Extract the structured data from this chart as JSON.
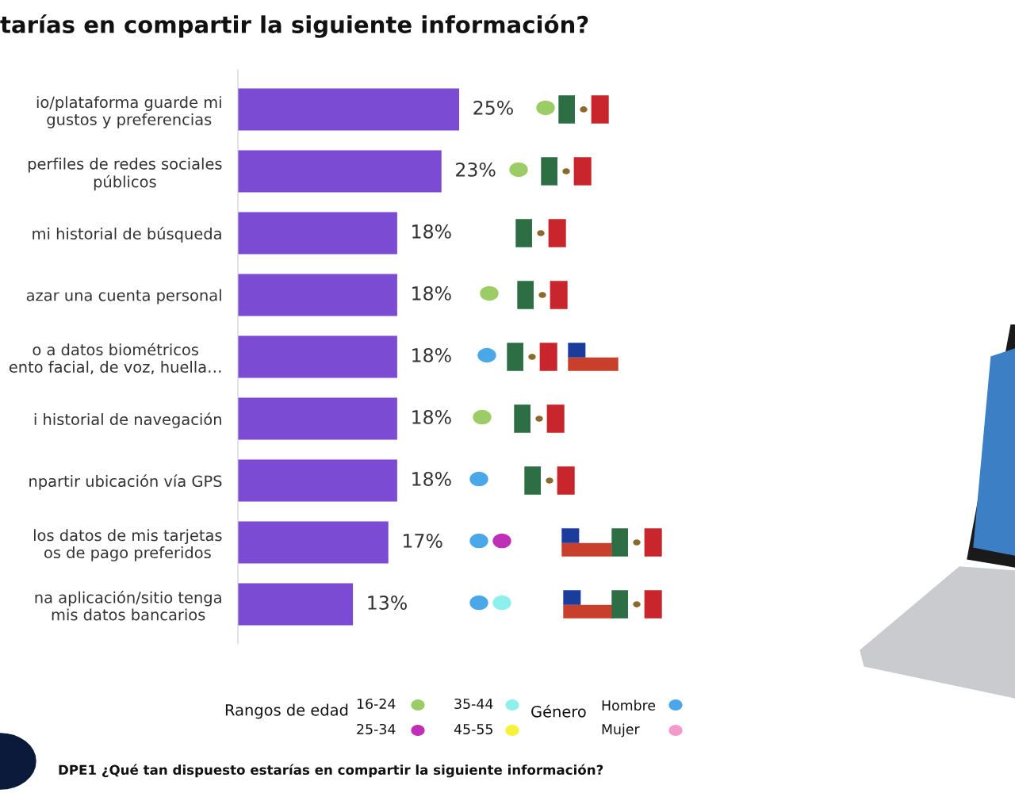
{
  "chart_data": {
    "type": "bar",
    "orientation": "horizontal",
    "title": "tarías en compartir la siguiente información?",
    "categories": [
      "io/plataforma guarde mi\ngustos y preferencias",
      "perfiles de redes sociales\npúblicos",
      "mi historial de búsqueda",
      "azar una cuenta personal",
      "o a datos biométricos\nento facial, de voz, huella…",
      "i historial de navegación",
      "npartir ubicación vía GPS",
      "los datos de mis tarjetas\nos de pago preferidos",
      "na aplicación/sitio tenga\nmis datos bancarios"
    ],
    "values": [
      25,
      23,
      18,
      18,
      18,
      18,
      18,
      17,
      13
    ],
    "value_labels": [
      "25%",
      "23%",
      "18%",
      "18%",
      "18%",
      "18%",
      "18%",
      "17%",
      "13%"
    ],
    "color": "#7b4bd3",
    "tick_labels": "y",
    "grid": false,
    "annotations": [
      "DPE1 ¿Qué tan dispuesto estarías en compartir la siguiente información?",
      "Rangos de edad",
      "16-24",
      "25-34",
      "35-44",
      "45-55",
      "Género",
      "Hombre",
      "Mujer"
    ]
  }
}
